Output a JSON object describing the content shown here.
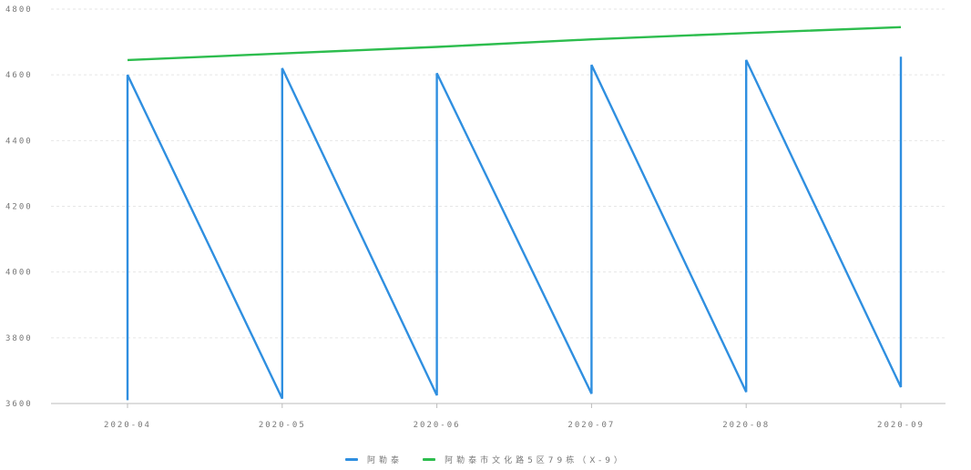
{
  "chart_data": {
    "type": "line",
    "categories": [
      "2020-04",
      "2020-05",
      "2020-06",
      "2020-07",
      "2020-08",
      "2020-09"
    ],
    "y_ticks": [
      "3600",
      "3800",
      "4000",
      "4200",
      "4400",
      "4600",
      "4800"
    ],
    "ylim": [
      3600,
      4800
    ],
    "grid": true,
    "legend_position": "bottom",
    "series": [
      {
        "name": "阿勒泰",
        "color": "#2f8fe0",
        "points": [
          {
            "x": 0,
            "y": 3610
          },
          {
            "x": 0,
            "y": 4600
          },
          {
            "x": 1,
            "y": 3615
          },
          {
            "x": 1,
            "y": 4620
          },
          {
            "x": 2,
            "y": 3625
          },
          {
            "x": 2,
            "y": 4605
          },
          {
            "x": 3,
            "y": 3630
          },
          {
            "x": 3,
            "y": 4630
          },
          {
            "x": 4,
            "y": 3635
          },
          {
            "x": 4,
            "y": 4645
          },
          {
            "x": 5,
            "y": 3650
          },
          {
            "x": 5,
            "y": 4655
          }
        ]
      },
      {
        "name": "阿勒泰市文化路5区79栋（X-9）",
        "color": "#2dbd4e",
        "points": [
          {
            "x": 0,
            "y": 4645
          },
          {
            "x": 1,
            "y": 4665
          },
          {
            "x": 2,
            "y": 4685
          },
          {
            "x": 3,
            "y": 4708
          },
          {
            "x": 4,
            "y": 4727
          },
          {
            "x": 5,
            "y": 4745
          }
        ]
      }
    ]
  }
}
